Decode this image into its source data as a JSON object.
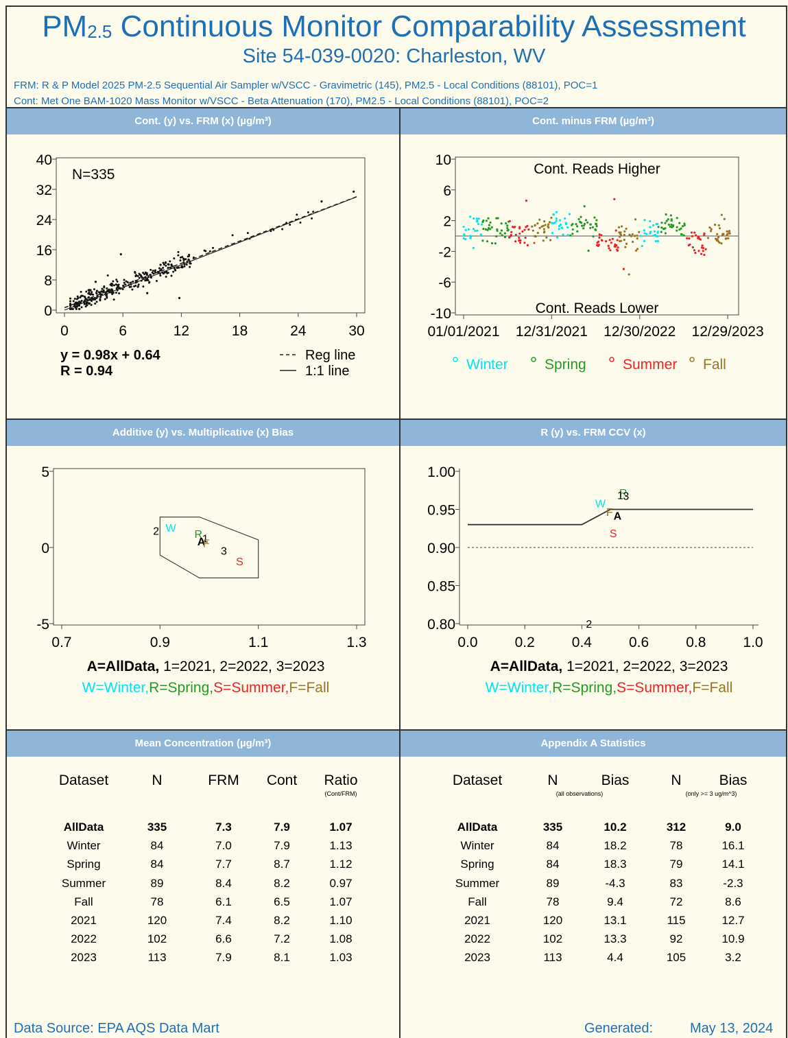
{
  "header": {
    "title_pre": "PM",
    "title_sub": "2.5",
    "title_post": " Continuous Monitor Comparability Assessment",
    "site": "Site 54-039-0020: Charleston, WV",
    "frm_line": "FRM: R & P Model 2025 PM-2.5 Sequential Air Sampler w/VSCC - Gravimetric (145), PM2.5 - Local Conditions (88101), POC=1",
    "cont_line": "Cont: Met One BAM-1020 Mass Monitor w/VSCC - Beta Attenuation (170), PM2.5 - Local Conditions (88101), POC=2"
  },
  "colors": {
    "title_blue": "#1f6fb5",
    "band": "#8fb6d9",
    "winter": "#00e5ee",
    "spring": "#229922",
    "summer": "#ee2222",
    "fall": "#9a7326"
  },
  "panels": {
    "p1_title": "Cont. (y) vs. FRM (x)   (µg/m³)",
    "p2_title": "Cont. minus FRM   (µg/m³)",
    "p3_title": "Additive (y) vs. Multiplicative (x) Bias",
    "p4_title": "R (y) vs. FRM CCV (x)",
    "p5_title": "Mean Concentration     (µg/m³)",
    "p6_title": "Appendix A Statistics"
  },
  "chart_data": [
    {
      "id": "scatter",
      "type": "scatter",
      "n_label": "N=335",
      "equation": "y = 0.98x + 0.64",
      "r_label": "R = 0.94",
      "legend": [
        "Reg line",
        "1:1 line"
      ],
      "xlim": [
        0,
        30
      ],
      "ylim": [
        0,
        40
      ],
      "xticks": [
        "0",
        "6",
        "12",
        "18",
        "24",
        "30"
      ],
      "yticks": [
        "0",
        "8",
        "16",
        "24",
        "32",
        "40"
      ],
      "regression": {
        "slope": 0.98,
        "intercept": 0.64
      },
      "outliers": [
        [
          5.8,
          14.8
        ],
        [
          11.8,
          3.2
        ],
        [
          26.4,
          28.8
        ],
        [
          29.7,
          31.4
        ],
        [
          8.5,
          4.5
        ],
        [
          3.2,
          7.5
        ]
      ]
    },
    {
      "id": "difference",
      "type": "scatter",
      "annot_high": "Cont. Reads Higher",
      "annot_low": "Cont. Reads Lower",
      "ylim": [
        -10,
        10
      ],
      "yticks": [
        "10",
        "6",
        "2",
        "-2",
        "-6",
        "-10"
      ],
      "xticks": [
        "01/01/2021",
        "12/31/2021",
        "12/30/2022",
        "12/29/2023"
      ],
      "legend": [
        {
          "label": "Winter",
          "color": "#00e5ee"
        },
        {
          "label": "Spring",
          "color": "#229922"
        },
        {
          "label": "Summer",
          "color": "#ee2222"
        },
        {
          "label": "Fall",
          "color": "#9a7326"
        }
      ],
      "seasons_by_year": [
        {
          "season": "Winter",
          "mean": 1.0,
          "start": 0.0,
          "end": 0.07
        },
        {
          "season": "Spring",
          "mean": 1.2,
          "start": 0.07,
          "end": 0.17
        },
        {
          "season": "Summer",
          "mean": 0.3,
          "start": 0.17,
          "end": 0.25
        },
        {
          "season": "Fall",
          "mean": 1.0,
          "start": 0.25,
          "end": 0.33
        },
        {
          "season": "Winter",
          "mean": 1.6,
          "start": 0.33,
          "end": 0.4
        },
        {
          "season": "Spring",
          "mean": 1.5,
          "start": 0.4,
          "end": 0.5
        },
        {
          "season": "Summer",
          "mean": -0.9,
          "start": 0.5,
          "end": 0.58
        },
        {
          "season": "Fall",
          "mean": 0.0,
          "start": 0.58,
          "end": 0.66
        },
        {
          "season": "Winter",
          "mean": 0.3,
          "start": 0.66,
          "end": 0.73
        },
        {
          "season": "Spring",
          "mean": 1.2,
          "start": 0.73,
          "end": 0.83
        },
        {
          "season": "Summer",
          "mean": -1.0,
          "start": 0.83,
          "end": 0.91
        },
        {
          "season": "Fall",
          "mean": 0.4,
          "start": 0.91,
          "end": 1.0
        }
      ],
      "outliers": [
        [
          0.235,
          4.6
        ],
        [
          0.565,
          4.8
        ],
        [
          0.62,
          -5.0
        ],
        [
          0.6,
          -4.3
        ],
        [
          0.24,
          -1.2
        ]
      ]
    },
    {
      "id": "bias",
      "type": "scatter",
      "xlim": [
        0.7,
        1.3
      ],
      "ylim": [
        -5,
        5
      ],
      "xticks": [
        "0.7",
        "0.9",
        "1.1",
        "1.3"
      ],
      "yticks": [
        "5",
        "0",
        "-5"
      ],
      "polygon": [
        [
          0.9,
          2
        ],
        [
          0.98,
          2
        ],
        [
          1.1,
          0.5
        ],
        [
          1.1,
          -2
        ],
        [
          0.98,
          -2
        ],
        [
          0.9,
          -0.5
        ]
      ],
      "points": [
        {
          "label": "2",
          "x": 0.892,
          "y": 1.1,
          "color": "#000000"
        },
        {
          "label": "W",
          "x": 0.922,
          "y": 1.3,
          "color": "#00e5ee"
        },
        {
          "label": "R",
          "x": 0.978,
          "y": 0.9,
          "color": "#229922"
        },
        {
          "label": "A",
          "x": 0.984,
          "y": 0.4,
          "color": "#000000"
        },
        {
          "label": "1",
          "x": 0.992,
          "y": 0.6,
          "color": "#000000"
        },
        {
          "label": "F",
          "x": 0.994,
          "y": 0.3,
          "color": "#9a7326"
        },
        {
          "label": "3",
          "x": 1.03,
          "y": -0.2,
          "color": "#000000"
        },
        {
          "label": "S",
          "x": 1.062,
          "y": -0.9,
          "color": "#ee2222"
        }
      ],
      "legend1": "A=AllData, 1=2021, 2=2022, 3=2023",
      "legend2": [
        {
          "label": "W=Winter,",
          "color": "#00e5ee"
        },
        {
          "label": "R=Spring,",
          "color": "#229922"
        },
        {
          "label": "S=Summer,",
          "color": "#ee2222"
        },
        {
          "label": "F=Fall",
          "color": "#9a7326"
        }
      ]
    },
    {
      "id": "r_vs_ccv",
      "type": "scatter",
      "xlim": [
        0.0,
        1.0
      ],
      "ylim": [
        0.8,
        1.0
      ],
      "xticks": [
        "0.0",
        "0.2",
        "0.4",
        "0.6",
        "0.8",
        "1.0"
      ],
      "yticks": [
        "1.00",
        "0.95",
        "0.90",
        "0.85",
        "0.80"
      ],
      "criterion_line": [
        [
          0.0,
          0.93
        ],
        [
          0.4,
          0.93
        ],
        [
          0.5,
          0.95
        ],
        [
          1.0,
          0.95
        ]
      ],
      "dashed_y": 0.9,
      "points": [
        {
          "label": "R",
          "x": 0.545,
          "y": 0.972,
          "color": "#229922"
        },
        {
          "label": "1",
          "x": 0.535,
          "y": 0.969,
          "color": "#000000"
        },
        {
          "label": "3",
          "x": 0.555,
          "y": 0.968,
          "color": "#000000"
        },
        {
          "label": "W",
          "x": 0.465,
          "y": 0.958,
          "color": "#00e5ee"
        },
        {
          "label": "F",
          "x": 0.497,
          "y": 0.947,
          "color": "#9a7326"
        },
        {
          "label": "A",
          "x": 0.525,
          "y": 0.942,
          "color": "#000000"
        },
        {
          "label": "S",
          "x": 0.51,
          "y": 0.919,
          "color": "#ee2222"
        },
        {
          "label": "2",
          "x": 0.425,
          "y": 0.8,
          "color": "#000000"
        }
      ],
      "legend1": "A=AllData,  1=2021, 2=2022, 3=2023",
      "legend2": [
        {
          "label": "W=Winter,",
          "color": "#00e5ee"
        },
        {
          "label": "R=Spring,",
          "color": "#229922"
        },
        {
          "label": "S=Summer,",
          "color": "#ee2222"
        },
        {
          "label": "F=Fall",
          "color": "#9a7326"
        }
      ]
    },
    {
      "id": "mean_table",
      "type": "table",
      "headers": [
        "Dataset",
        "N",
        "FRM",
        "Cont",
        "Ratio"
      ],
      "ratio_note": "(Cont/FRM)",
      "rows": [
        [
          "AllData",
          "335",
          "7.3",
          "7.9",
          "1.07"
        ],
        [
          "Winter",
          "84",
          "7.0",
          "7.9",
          "1.13"
        ],
        [
          "Spring",
          "84",
          "7.7",
          "8.7",
          "1.12"
        ],
        [
          "Summer",
          "89",
          "8.4",
          "8.2",
          "0.97"
        ],
        [
          "Fall",
          "78",
          "6.1",
          "6.5",
          "1.07"
        ],
        [
          "2021",
          "120",
          "7.4",
          "8.2",
          "1.10"
        ],
        [
          "2022",
          "102",
          "6.6",
          "7.2",
          "1.08"
        ],
        [
          "2023",
          "113",
          "7.9",
          "8.1",
          "1.03"
        ]
      ]
    },
    {
      "id": "appendix_table",
      "type": "table",
      "headers": [
        "Dataset",
        "N",
        "Bias",
        "N",
        "Bias"
      ],
      "note_all": "(all observations)",
      "note_ge3": "(only >= 3 ug/m^3)",
      "rows": [
        [
          "AllData",
          "335",
          "10.2",
          "312",
          "9.0"
        ],
        [
          "Winter",
          "84",
          "18.2",
          "78",
          "16.1"
        ],
        [
          "Spring",
          "84",
          "18.3",
          "79",
          "14.1"
        ],
        [
          "Summer",
          "89",
          "-4.3",
          "83",
          "-2.3"
        ],
        [
          "Fall",
          "78",
          "9.4",
          "72",
          "8.6"
        ],
        [
          "2021",
          "120",
          "13.1",
          "115",
          "12.7"
        ],
        [
          "2022",
          "102",
          "13.3",
          "92",
          "10.9"
        ],
        [
          "2023",
          "113",
          "4.4",
          "105",
          "3.2"
        ]
      ]
    }
  ],
  "footer": {
    "source": "Data Source: EPA AQS Data Mart",
    "generated_label": "Generated:",
    "generated_date": "May 13, 2024"
  }
}
